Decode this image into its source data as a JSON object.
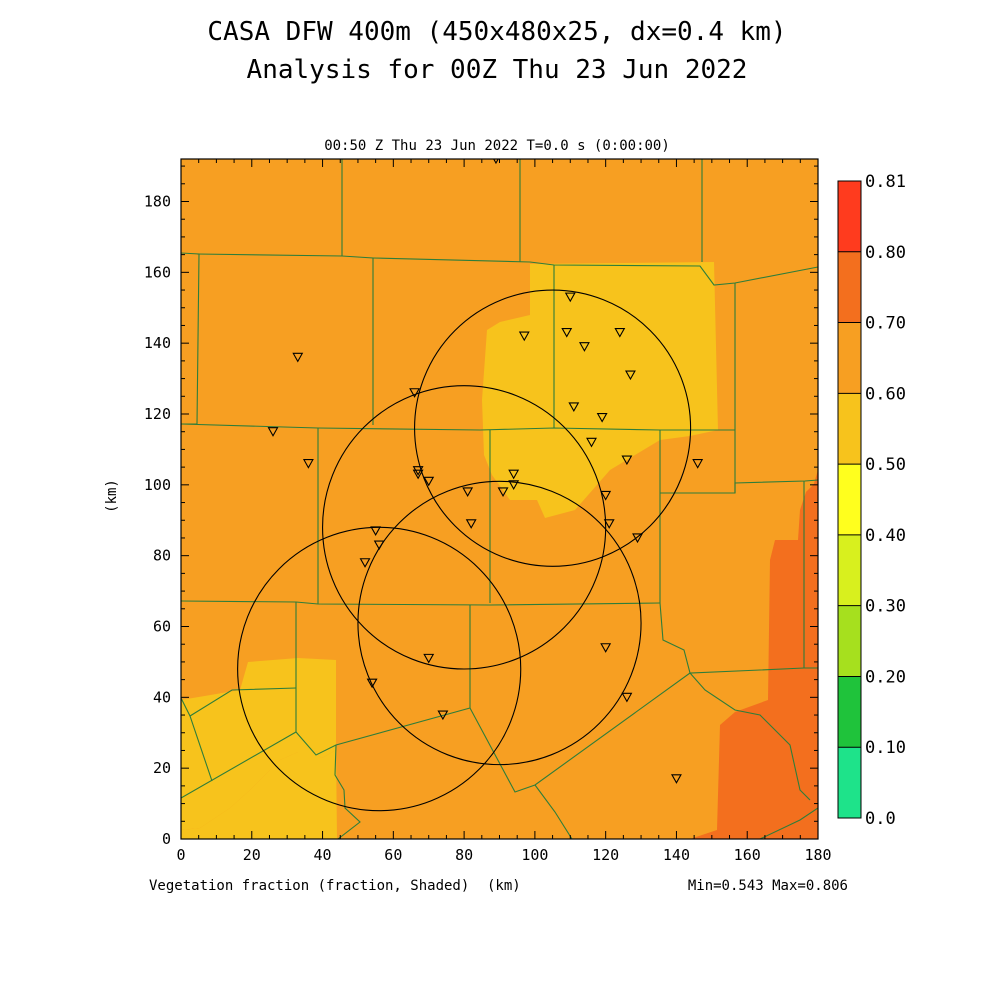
{
  "header": {
    "title_line1": "CASA DFW 400m (450x480x25, dx=0.4 km)",
    "title_line2": "Analysis for 00Z Thu 23 Jun 2022",
    "plot_time": "00:50 Z Thu 23 Jun 2022    T=0.0 s (0:00:00)"
  },
  "footer": {
    "field_label": "Vegetation fraction (fraction, Shaded)",
    "x_unit": "(km)",
    "minmax": "Min=0.543 Max=0.806"
  },
  "colors": {
    "c_055_060": "#f7c31c",
    "c_060_070": "#f79f22",
    "c_070_080": "#f36f1e",
    "county_lines": "#2e7d3a"
  },
  "colorbar": {
    "levels": [
      {
        "label": "0.81",
        "color": "#ff3b1e"
      },
      {
        "label": "0.80",
        "color": "#f36f1e"
      },
      {
        "label": "0.70",
        "color": "#f79f22"
      },
      {
        "label": "0.60",
        "color": "#f7c31c"
      },
      {
        "label": "0.50",
        "color": "#ffff1e"
      },
      {
        "label": "0.40",
        "color": "#d8f01e"
      },
      {
        "label": "0.30",
        "color": "#a6e01e"
      },
      {
        "label": "0.20",
        "color": "#1fc33b"
      },
      {
        "label": "0.10",
        "color": "#1ee38a"
      },
      {
        "label": "0.0",
        "color": null
      }
    ]
  },
  "chart_data": {
    "type": "heatmap",
    "field": "Vegetation fraction",
    "units": "fraction",
    "xlabel": "(km)",
    "ylabel": "(km)",
    "xlim": [
      0,
      180
    ],
    "ylim": [
      0,
      192
    ],
    "x_ticks": [
      0,
      20,
      40,
      60,
      80,
      100,
      120,
      140,
      160,
      180
    ],
    "y_ticks": [
      0,
      20,
      40,
      60,
      80,
      100,
      120,
      140,
      160,
      180
    ],
    "min": 0.543,
    "max": 0.806,
    "contour_levels": [
      0.0,
      0.1,
      0.2,
      0.3,
      0.4,
      0.5,
      0.6,
      0.7,
      0.8,
      0.81
    ],
    "range_rings": [
      {
        "cx": 105,
        "cy": 116,
        "r": 39
      },
      {
        "cx": 80,
        "cy": 88,
        "r": 40
      },
      {
        "cx": 90,
        "cy": 61,
        "r": 40
      },
      {
        "cx": 56,
        "cy": 48,
        "r": 40
      }
    ],
    "sites": [
      [
        89,
        192
      ],
      [
        110,
        153
      ],
      [
        109,
        143
      ],
      [
        97,
        142
      ],
      [
        124,
        143
      ],
      [
        114,
        139
      ],
      [
        33,
        136
      ],
      [
        127,
        131
      ],
      [
        66,
        126
      ],
      [
        111,
        122
      ],
      [
        119,
        119
      ],
      [
        26,
        115
      ],
      [
        116,
        112
      ],
      [
        126,
        107
      ],
      [
        146,
        106
      ],
      [
        36,
        106
      ],
      [
        67,
        104
      ],
      [
        67,
        103
      ],
      [
        70,
        101
      ],
      [
        94,
        103
      ],
      [
        91,
        98
      ],
      [
        94,
        100
      ],
      [
        81,
        98
      ],
      [
        120,
        97
      ],
      [
        82,
        89
      ],
      [
        121,
        89
      ],
      [
        129,
        85
      ],
      [
        55,
        87
      ],
      [
        56,
        83
      ],
      [
        52,
        78
      ],
      [
        120,
        54
      ],
      [
        70,
        51
      ],
      [
        54,
        44
      ],
      [
        126,
        40
      ],
      [
        74,
        35
      ],
      [
        140,
        17
      ]
    ]
  }
}
